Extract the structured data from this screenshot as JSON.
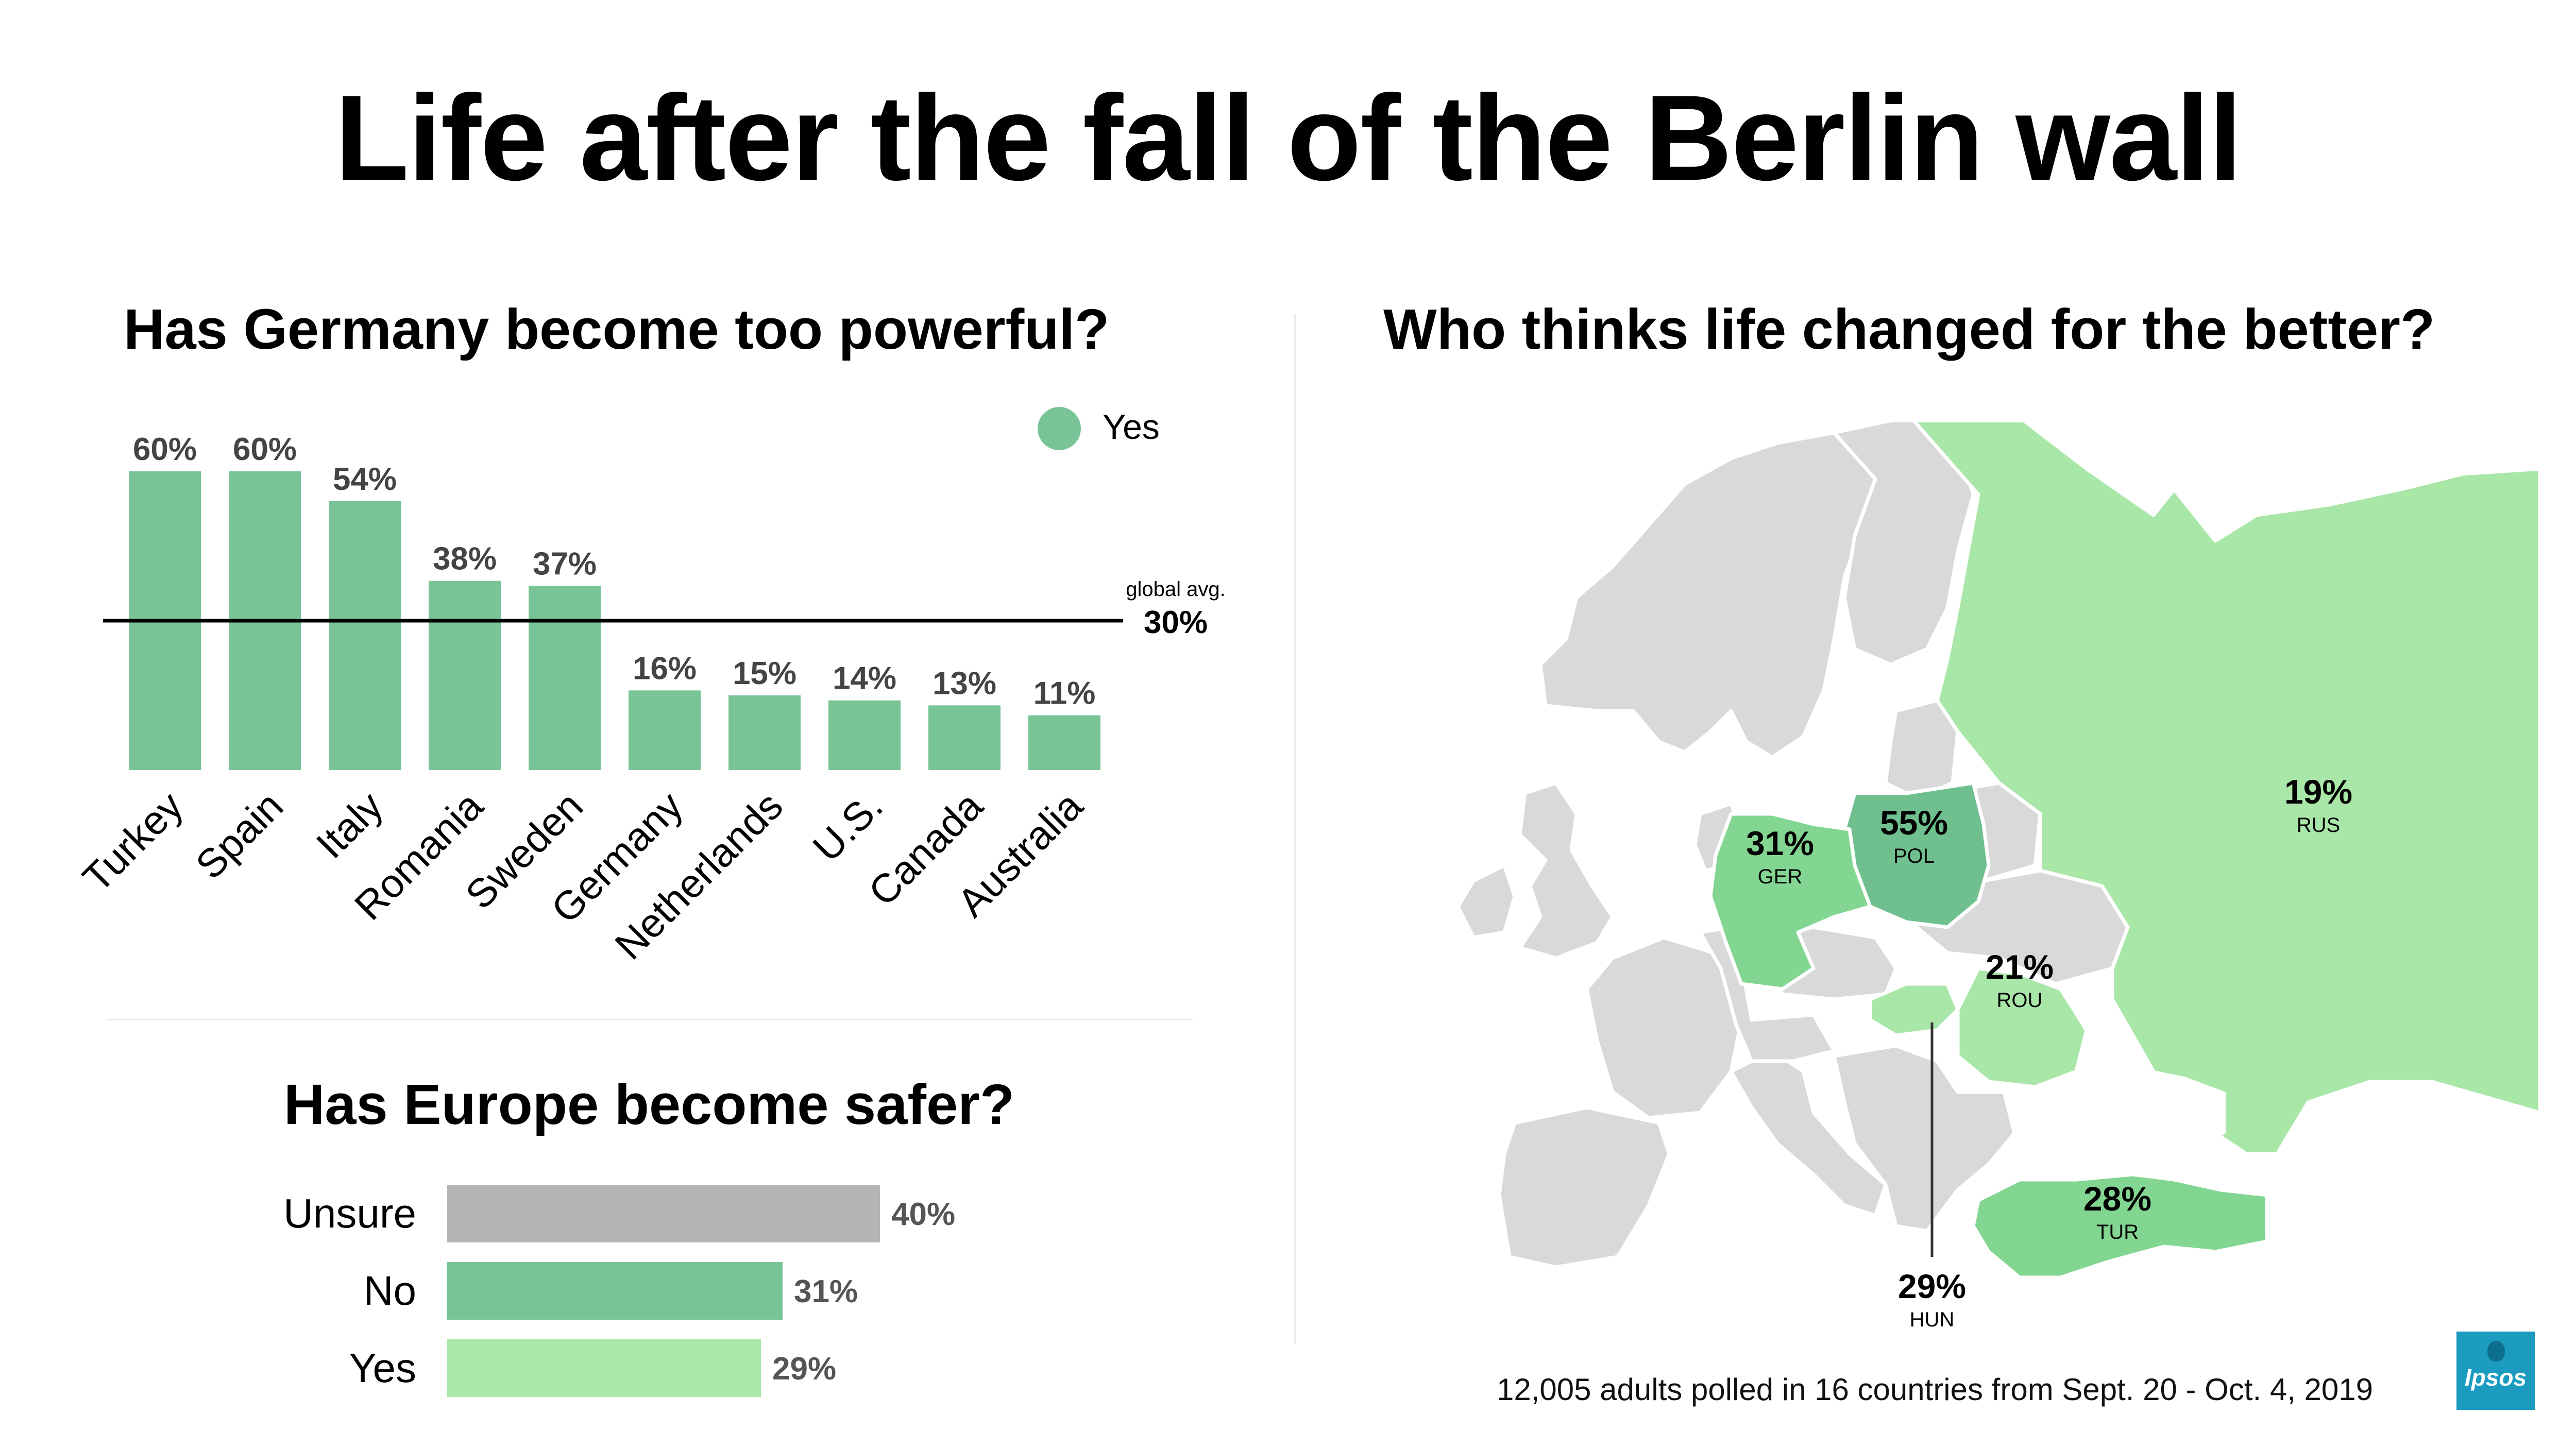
{
  "title": "Life after the fall of the Berlin wall",
  "footnote": "12,005 adults polled in 16 countries from Sept. 20 - Oct. 4, 2019",
  "logo_text": "Ipsos",
  "colors": {
    "yes_bar": "#78c497",
    "unsure_bar": "#b5b5b5",
    "hbar_yes": "#aae8a9",
    "map_base": "#d9d9d9",
    "map_light_green": "#a9e7a8",
    "map_green": "#83d691",
    "map_dark_green": "#6fbf8f",
    "logo": "#1b9bbf"
  },
  "chart_data": [
    {
      "type": "bar",
      "title": "Has Germany become too powerful?",
      "legend": [
        "Yes"
      ],
      "legend_position": "top-right",
      "categories": [
        "Turkey",
        "Spain",
        "Italy",
        "Romania",
        "Sweden",
        "Germany",
        "Netherlands",
        "U.S.",
        "Canada",
        "Australia"
      ],
      "values": [
        60,
        60,
        54,
        38,
        37,
        16,
        15,
        14,
        13,
        11
      ],
      "value_labels": [
        "60%",
        "60%",
        "54%",
        "38%",
        "37%",
        "16%",
        "15%",
        "14%",
        "13%",
        "11%"
      ],
      "reference_line": {
        "label": "global avg.",
        "value": 30,
        "value_label": "30%"
      },
      "ylim": [
        0,
        60
      ]
    },
    {
      "type": "bar",
      "orientation": "horizontal",
      "title": "Has Europe become safer?",
      "categories": [
        "Unsure",
        "No",
        "Yes"
      ],
      "values": [
        40,
        31,
        29
      ],
      "value_labels": [
        "40%",
        "31%",
        "29%"
      ]
    },
    {
      "type": "map",
      "title": "Who thinks life changed for the better?",
      "regions": [
        {
          "code": "RUS",
          "value": 19,
          "value_label": "19%"
        },
        {
          "code": "POL",
          "value": 55,
          "value_label": "55%"
        },
        {
          "code": "GER",
          "value": 31,
          "value_label": "31%"
        },
        {
          "code": "ROU",
          "value": 21,
          "value_label": "21%"
        },
        {
          "code": "TUR",
          "value": 28,
          "value_label": "28%"
        },
        {
          "code": "HUN",
          "value": 29,
          "value_label": "29%"
        }
      ]
    }
  ]
}
